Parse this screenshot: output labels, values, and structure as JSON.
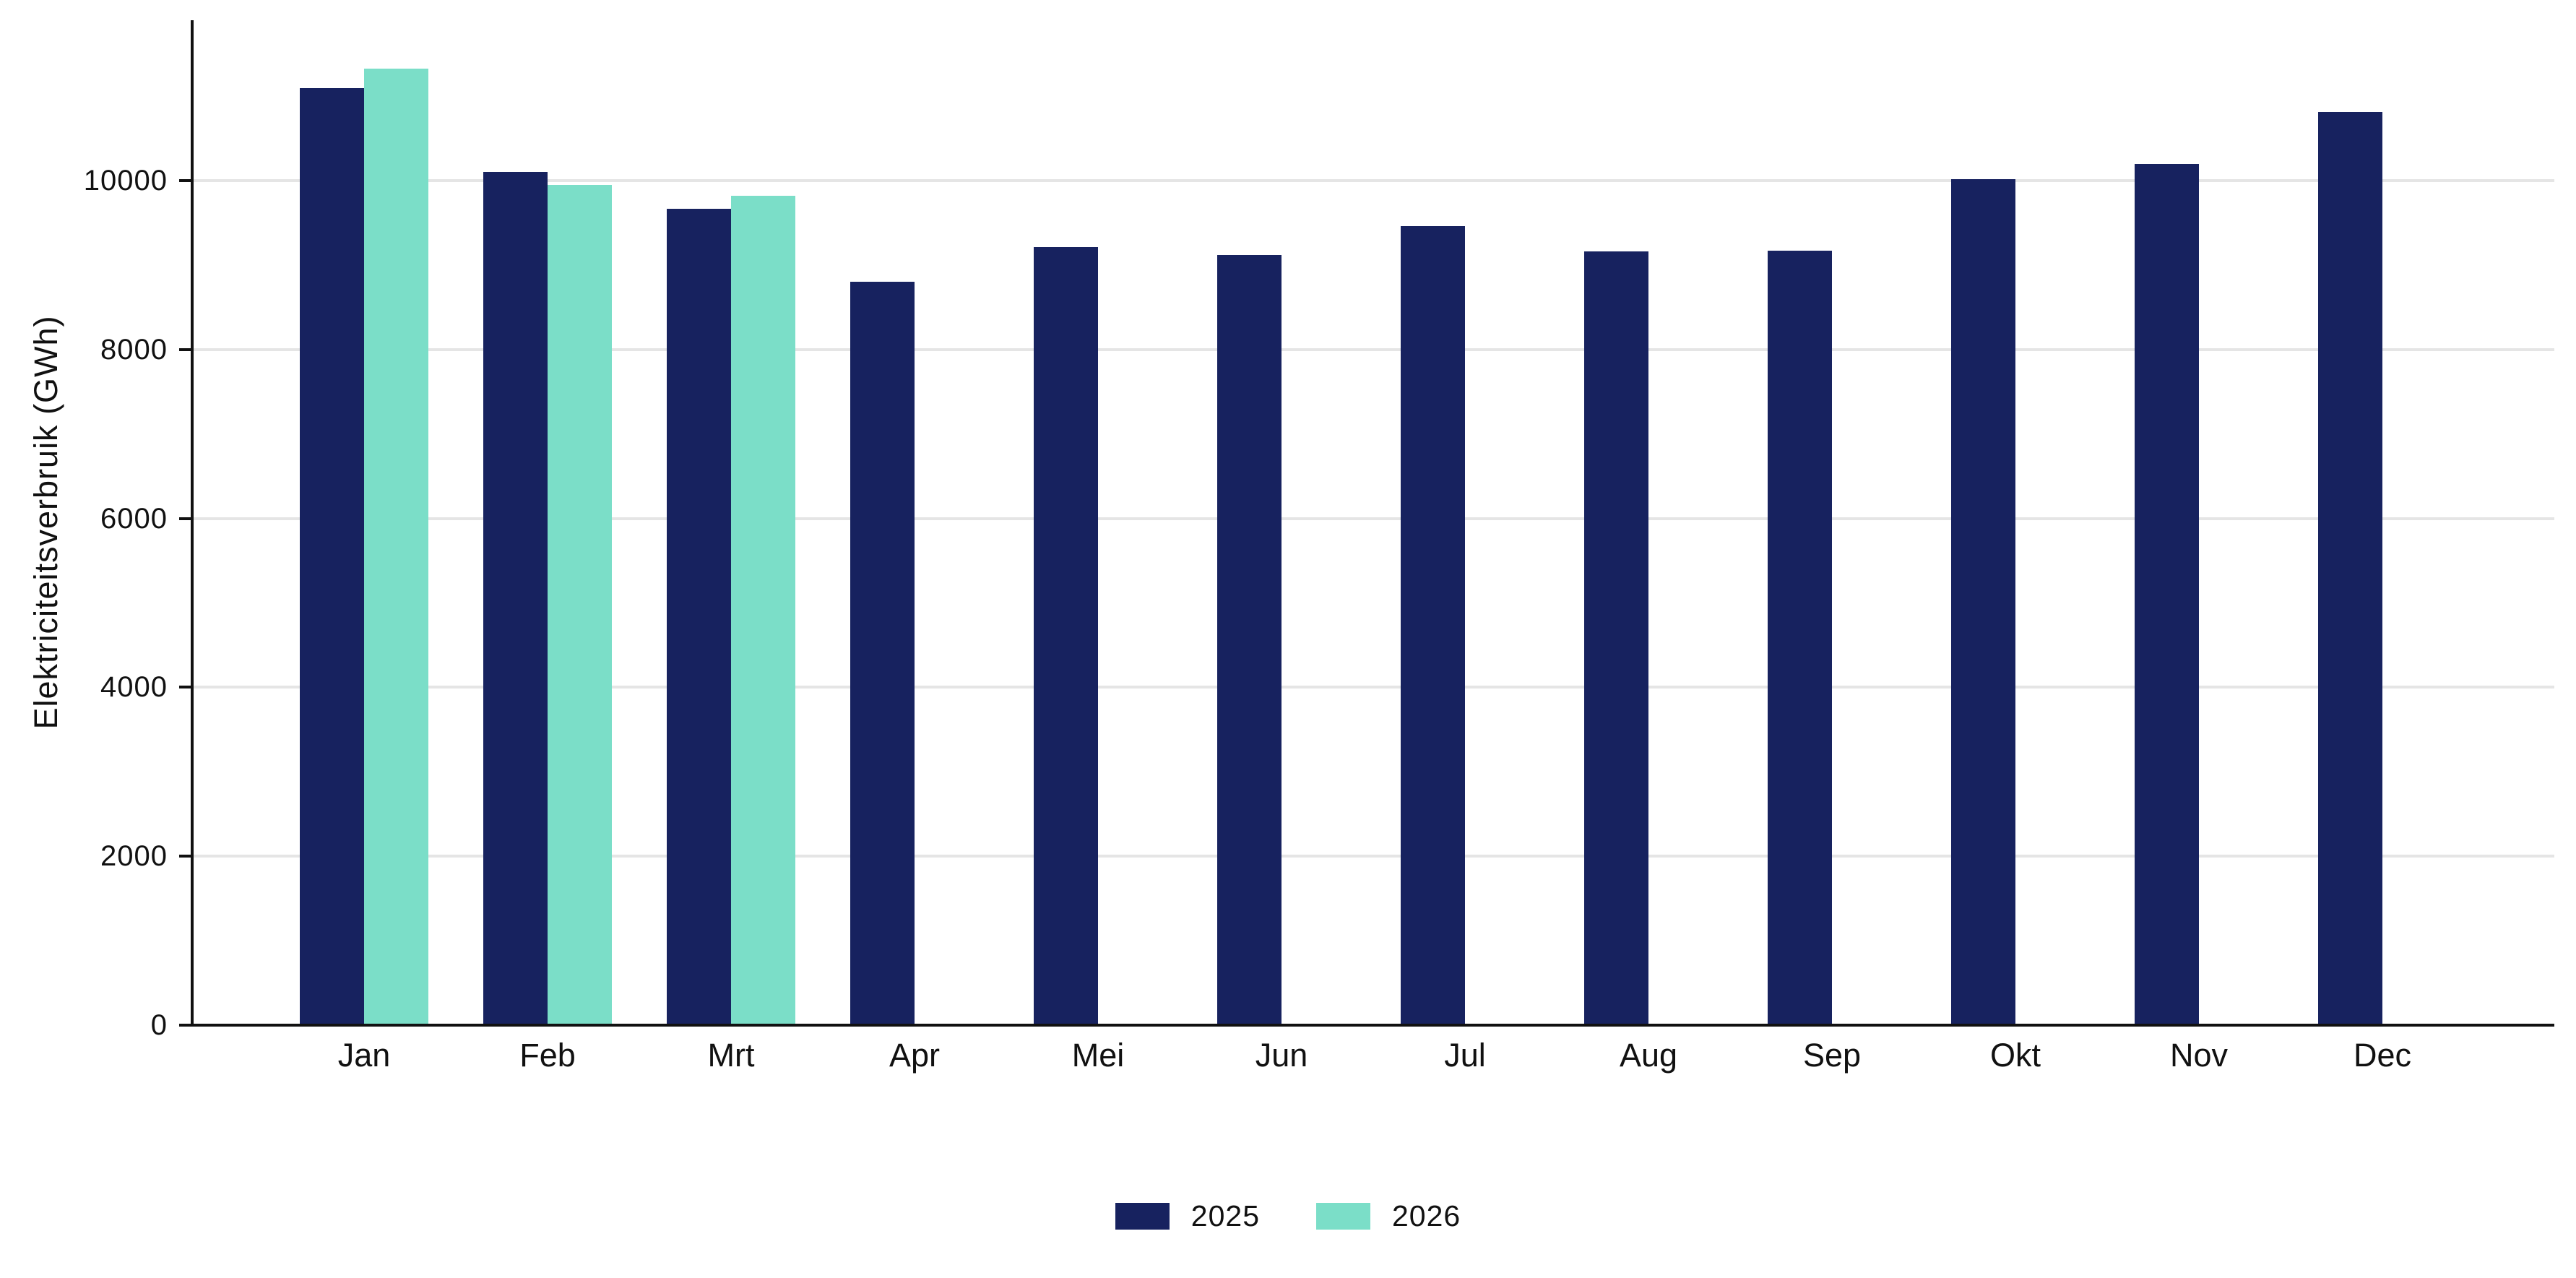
{
  "page": {
    "background": "#ffffff"
  },
  "chart_data": {
    "type": "bar",
    "title": "",
    "xlabel": "",
    "ylabel": "Elektriciteitsverbruik (GWh)",
    "categories": [
      "Jan",
      "Feb",
      "Mrt",
      "Apr",
      "Mei",
      "Jun",
      "Jul",
      "Aug",
      "Sep",
      "Okt",
      "Nov",
      "Dec"
    ],
    "series": [
      {
        "name": "2025",
        "color": "#17225f",
        "values": [
          11100,
          10100,
          9670,
          8800,
          9210,
          9120,
          9460,
          9160,
          9170,
          10020,
          10200,
          10810
        ]
      },
      {
        "name": "2026",
        "color": "#7bdec8",
        "values": [
          11330,
          9950,
          9820,
          null,
          null,
          null,
          null,
          null,
          null,
          null,
          null,
          null
        ]
      }
    ],
    "yticks": [
      0,
      2000,
      4000,
      6000,
      8000,
      10000
    ],
    "ylim": [
      0,
      11900
    ],
    "grid": true,
    "grid_color": "#e5e5e5",
    "axis_color": "#111111",
    "text_color": "#111111",
    "legend_position": "bottom"
  }
}
